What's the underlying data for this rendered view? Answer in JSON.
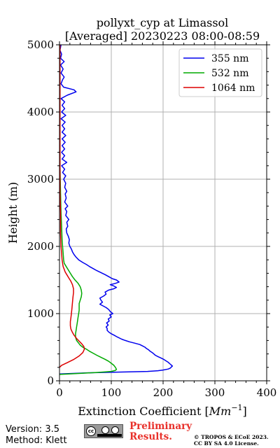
{
  "chart_data": {
    "type": "line",
    "title": "pollyxt_cyp at Limassol",
    "subtitle": "[Averaged] 20230223 08:00-08:59",
    "xlabel": "Extinction Coefficient [",
    "xlabel_unit": "Mm",
    "xlabel_exp": "−1",
    "xlabel_end": "]",
    "ylabel": "Height (m)",
    "xlim": [
      0,
      400
    ],
    "ylim": [
      0,
      5000
    ],
    "x_ticks": [
      0,
      100,
      200,
      300,
      400
    ],
    "y_ticks": [
      0,
      1000,
      2000,
      3000,
      4000,
      5000
    ],
    "x_tick_labels": [
      "0",
      "100",
      "200",
      "300",
      "400"
    ],
    "y_tick_labels": [
      "0",
      "1000",
      "2000",
      "3000",
      "4000",
      "5000"
    ],
    "grid": true,
    "legend_position": "top-right",
    "series": [
      {
        "name": "355 nm",
        "color": "#0000ee",
        "points": [
          [
            -5,
            100
          ],
          [
            60,
            120
          ],
          [
            170,
            140
          ],
          [
            190,
            150
          ],
          [
            200,
            160
          ],
          [
            210,
            175
          ],
          [
            214,
            190
          ],
          [
            216,
            205
          ],
          [
            218,
            220
          ],
          [
            215,
            240
          ],
          [
            212,
            260
          ],
          [
            209,
            280
          ],
          [
            205,
            300
          ],
          [
            201,
            320
          ],
          [
            196,
            340
          ],
          [
            190,
            360
          ],
          [
            185,
            380
          ],
          [
            182,
            400
          ],
          [
            179,
            420
          ],
          [
            175,
            440
          ],
          [
            172,
            460
          ],
          [
            168,
            480
          ],
          [
            165,
            500
          ],
          [
            160,
            520
          ],
          [
            155,
            540
          ],
          [
            145,
            560
          ],
          [
            135,
            580
          ],
          [
            127,
            600
          ],
          [
            120,
            620
          ],
          [
            112,
            650
          ],
          [
            105,
            680
          ],
          [
            100,
            700
          ],
          [
            96,
            720
          ],
          [
            92,
            750
          ],
          [
            92,
            780
          ],
          [
            90,
            800
          ],
          [
            94,
            830
          ],
          [
            91,
            860
          ],
          [
            96,
            890
          ],
          [
            94,
            920
          ],
          [
            100,
            950
          ],
          [
            97,
            980
          ],
          [
            103,
            1000
          ],
          [
            98,
            1030
          ],
          [
            95,
            1060
          ],
          [
            90,
            1090
          ],
          [
            85,
            1110
          ],
          [
            78,
            1140
          ],
          [
            83,
            1170
          ],
          [
            80,
            1200
          ],
          [
            78,
            1230
          ],
          [
            85,
            1260
          ],
          [
            90,
            1290
          ],
          [
            88,
            1320
          ],
          [
            95,
            1350
          ],
          [
            105,
            1370
          ],
          [
            110,
            1390
          ],
          [
            105,
            1410
          ],
          [
            98,
            1430
          ],
          [
            108,
            1450
          ],
          [
            115,
            1470
          ],
          [
            110,
            1500
          ],
          [
            102,
            1520
          ],
          [
            95,
            1550
          ],
          [
            88,
            1580
          ],
          [
            80,
            1610
          ],
          [
            72,
            1640
          ],
          [
            65,
            1670
          ],
          [
            58,
            1700
          ],
          [
            52,
            1730
          ],
          [
            45,
            1760
          ],
          [
            37,
            1800
          ],
          [
            32,
            1840
          ],
          [
            28,
            1880
          ],
          [
            25,
            1920
          ],
          [
            23,
            1960
          ],
          [
            20,
            2000
          ],
          [
            18,
            2050
          ],
          [
            19,
            2100
          ],
          [
            17,
            2150
          ],
          [
            14,
            2200
          ],
          [
            13,
            2260
          ],
          [
            16,
            2300
          ],
          [
            14,
            2360
          ],
          [
            18,
            2400
          ],
          [
            12,
            2460
          ],
          [
            14,
            2520
          ],
          [
            11,
            2560
          ],
          [
            16,
            2600
          ],
          [
            10,
            2660
          ],
          [
            13,
            2720
          ],
          [
            11,
            2780
          ],
          [
            14,
            2820
          ],
          [
            10,
            2880
          ],
          [
            12,
            2940
          ],
          [
            8,
            3000
          ],
          [
            12,
            3050
          ],
          [
            6,
            3100
          ],
          [
            10,
            3150
          ],
          [
            4,
            3200
          ],
          [
            14,
            3250
          ],
          [
            5,
            3300
          ],
          [
            10,
            3350
          ],
          [
            4,
            3400
          ],
          [
            10,
            3450
          ],
          [
            5,
            3500
          ],
          [
            11,
            3550
          ],
          [
            5,
            3600
          ],
          [
            12,
            3650
          ],
          [
            5,
            3700
          ],
          [
            10,
            3750
          ],
          [
            5,
            3800
          ],
          [
            11,
            3850
          ],
          [
            3,
            3900
          ],
          [
            12,
            3950
          ],
          [
            4,
            4000
          ],
          [
            10,
            4050
          ],
          [
            5,
            4100
          ],
          [
            10,
            4150
          ],
          [
            3,
            4200
          ],
          [
            15,
            4250
          ],
          [
            32,
            4300
          ],
          [
            28,
            4330
          ],
          [
            8,
            4370
          ],
          [
            3,
            4420
          ],
          [
            6,
            4480
          ],
          [
            9,
            4520
          ],
          [
            3,
            4580
          ],
          [
            7,
            4640
          ],
          [
            2,
            4700
          ],
          [
            9,
            4750
          ],
          [
            2,
            4800
          ],
          [
            4,
            4860
          ],
          [
            1,
            4920
          ],
          [
            3,
            5000
          ]
        ]
      },
      {
        "name": "532 nm",
        "color": "#00aa00",
        "points": [
          [
            0,
            95
          ],
          [
            40,
            110
          ],
          [
            75,
            125
          ],
          [
            100,
            140
          ],
          [
            108,
            155
          ],
          [
            110,
            170
          ],
          [
            108,
            200
          ],
          [
            105,
            230
          ],
          [
            100,
            260
          ],
          [
            95,
            290
          ],
          [
            88,
            320
          ],
          [
            80,
            350
          ],
          [
            72,
            380
          ],
          [
            65,
            410
          ],
          [
            58,
            440
          ],
          [
            52,
            470
          ],
          [
            45,
            500
          ],
          [
            40,
            530
          ],
          [
            37,
            560
          ],
          [
            33,
            600
          ],
          [
            31,
            650
          ],
          [
            31,
            700
          ],
          [
            32,
            750
          ],
          [
            33,
            800
          ],
          [
            34,
            850
          ],
          [
            35,
            900
          ],
          [
            36,
            950
          ],
          [
            37,
            1000
          ],
          [
            38,
            1050
          ],
          [
            38,
            1100
          ],
          [
            38,
            1150
          ],
          [
            40,
            1200
          ],
          [
            42,
            1250
          ],
          [
            43,
            1300
          ],
          [
            42,
            1350
          ],
          [
            40,
            1400
          ],
          [
            36,
            1450
          ],
          [
            30,
            1500
          ],
          [
            25,
            1550
          ],
          [
            21,
            1600
          ],
          [
            17,
            1650
          ],
          [
            13,
            1700
          ],
          [
            9,
            1750
          ],
          [
            8,
            1800
          ],
          [
            7,
            1900
          ],
          [
            6,
            2000
          ],
          [
            5,
            2100
          ],
          [
            4,
            2300
          ],
          [
            3,
            2500
          ],
          [
            2,
            2800
          ],
          [
            1,
            3200
          ],
          [
            1,
            3600
          ],
          [
            1,
            4000
          ],
          [
            1,
            4400
          ],
          [
            1,
            4800
          ],
          [
            1,
            5000
          ]
        ]
      },
      {
        "name": "1064 nm",
        "color": "#dd0000",
        "points": [
          [
            0,
            200
          ],
          [
            4,
            230
          ],
          [
            15,
            270
          ],
          [
            28,
            320
          ],
          [
            38,
            370
          ],
          [
            45,
            420
          ],
          [
            48,
            470
          ],
          [
            47,
            510
          ],
          [
            43,
            550
          ],
          [
            38,
            590
          ],
          [
            33,
            630
          ],
          [
            28,
            680
          ],
          [
            25,
            720
          ],
          [
            22,
            770
          ],
          [
            21,
            820
          ],
          [
            21,
            880
          ],
          [
            22,
            940
          ],
          [
            23,
            1000
          ],
          [
            24,
            1080
          ],
          [
            25,
            1160
          ],
          [
            26,
            1240
          ],
          [
            27,
            1310
          ],
          [
            27,
            1370
          ],
          [
            25,
            1430
          ],
          [
            22,
            1480
          ],
          [
            18,
            1530
          ],
          [
            14,
            1580
          ],
          [
            11,
            1620
          ],
          [
            9,
            1660
          ],
          [
            7,
            1700
          ],
          [
            6,
            1750
          ],
          [
            5,
            1800
          ],
          [
            4,
            1900
          ],
          [
            3,
            2000
          ],
          [
            2,
            2200
          ],
          [
            2,
            2500
          ],
          [
            1,
            2800
          ],
          [
            1,
            3200
          ],
          [
            1,
            3600
          ],
          [
            1,
            4000
          ],
          [
            1,
            4400
          ],
          [
            1,
            4800
          ],
          [
            1,
            5000
          ]
        ]
      }
    ]
  },
  "footer": {
    "version": "Version: 3.5",
    "method": "Method: Klett",
    "license_badge": "CC BY SA",
    "preliminary_line1": "Preliminary",
    "preliminary_line2": "Results.",
    "copyright_line1": "© TROPOS & ECoE 2023.",
    "copyright_line2": "CC BY SA 4.0 License."
  }
}
